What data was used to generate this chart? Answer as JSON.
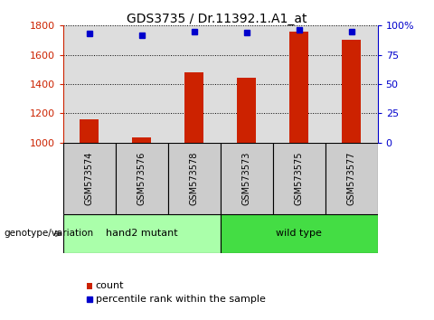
{
  "title": "GDS3735 / Dr.11392.1.A1_at",
  "samples": [
    "GSM573574",
    "GSM573576",
    "GSM573578",
    "GSM573573",
    "GSM573575",
    "GSM573577"
  ],
  "counts": [
    1155,
    1035,
    1480,
    1445,
    1760,
    1700
  ],
  "percentile_ranks": [
    93,
    92,
    95,
    94,
    96,
    95
  ],
  "groups": [
    "hand2 mutant",
    "hand2 mutant",
    "hand2 mutant",
    "wild type",
    "wild type",
    "wild type"
  ],
  "bar_color": "#CC2200",
  "dot_color": "#0000CC",
  "ylim_left": [
    1000,
    1800
  ],
  "ylim_right": [
    0,
    100
  ],
  "yticks_left": [
    1000,
    1200,
    1400,
    1600,
    1800
  ],
  "yticks_right": [
    0,
    25,
    50,
    75,
    100
  ],
  "tick_color_left": "#CC2200",
  "tick_color_right": "#0000CC",
  "label_count": "count",
  "label_percentile": "percentile rank within the sample",
  "group_label": "genotype/variation",
  "group_colors": {
    "hand2 mutant": "#AAFFAA",
    "wild type": "#44DD44"
  },
  "sample_box_color": "#CCCCCC",
  "plot_bg": "#DDDDDD"
}
